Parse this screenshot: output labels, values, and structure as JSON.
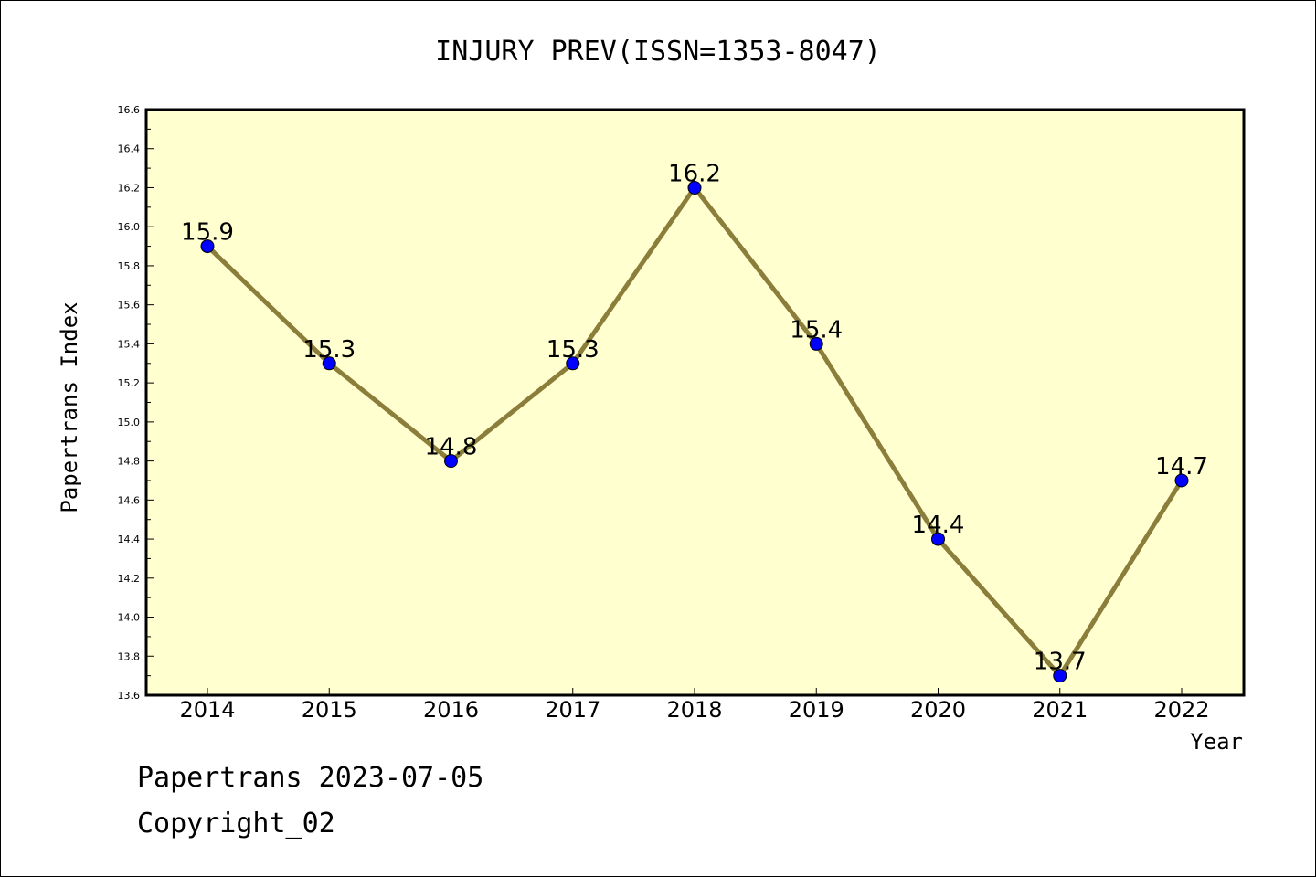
{
  "chart_data": {
    "type": "line",
    "title": "INJURY PREV(ISSN=1353-8047)",
    "xlabel": "Year",
    "ylabel": "Papertrans Index",
    "categories": [
      "2014",
      "2015",
      "2016",
      "2017",
      "2018",
      "2019",
      "2020",
      "2021",
      "2022"
    ],
    "values": [
      15.9,
      15.3,
      14.8,
      15.3,
      16.2,
      15.4,
      14.4,
      13.7,
      14.7
    ],
    "data_labels": [
      "15.9",
      "15.3",
      "14.8",
      "15.3",
      "16.2",
      "15.4",
      "14.4",
      "13.7",
      "14.7"
    ],
    "ylim": [
      13.6,
      16.6
    ],
    "yticks": [
      "13.6",
      "13.8",
      "14.0",
      "14.2",
      "14.4",
      "14.6",
      "14.8",
      "15.0",
      "15.2",
      "15.4",
      "15.6",
      "15.8",
      "16.0",
      "16.2",
      "16.4",
      "16.6"
    ],
    "grid": false,
    "colors": {
      "line": "#8B7D3A",
      "marker": "#0000FF",
      "plot_background": "#FFFFD0"
    }
  },
  "footer": {
    "line1": "Papertrans 2023-07-05",
    "line2": "Copyright_02"
  }
}
